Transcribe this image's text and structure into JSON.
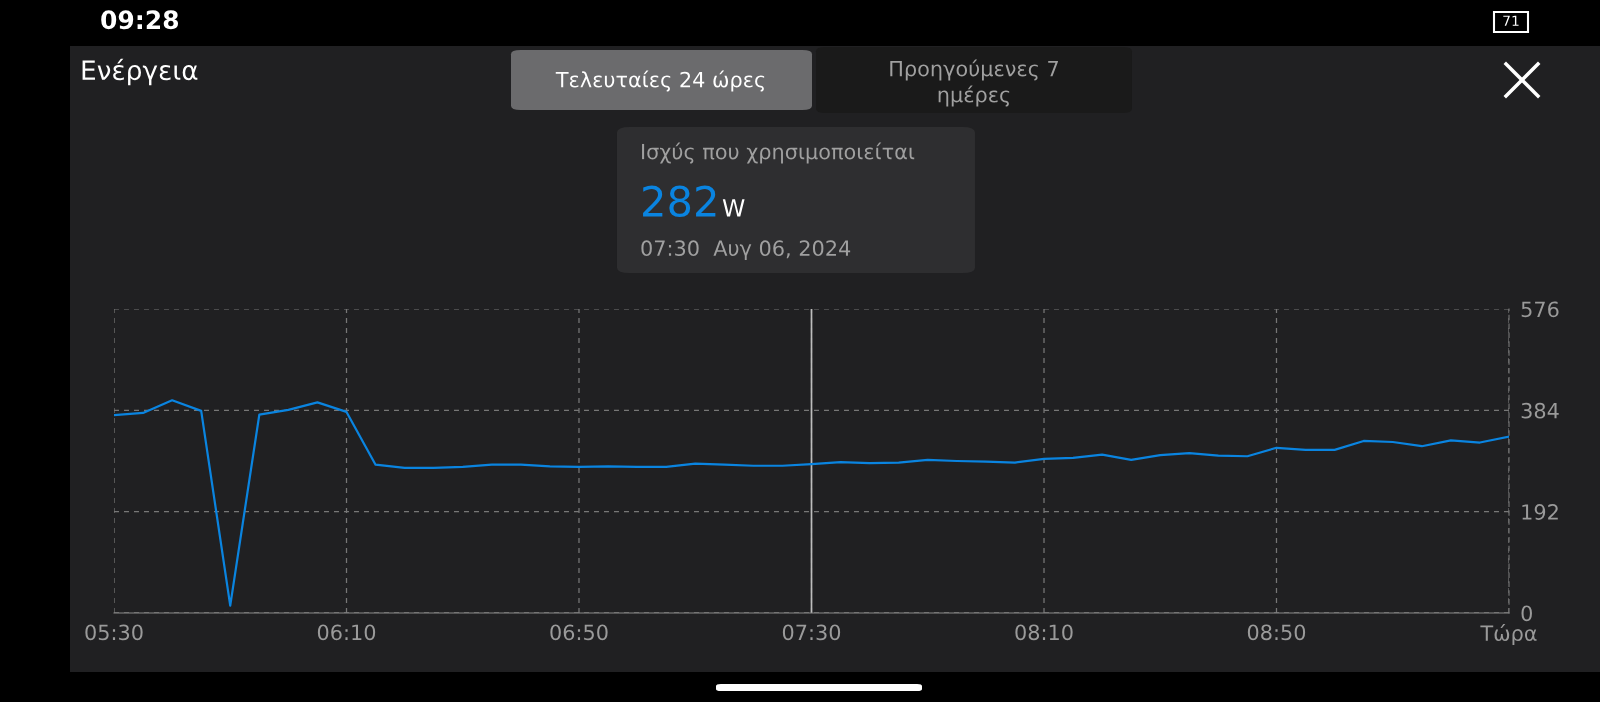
{
  "chart_data": {
    "type": "line",
    "title": "Ενέργεια",
    "x": [
      5.5,
      5.5833,
      5.6667,
      5.75,
      5.8333,
      5.9167,
      6.0,
      6.0833,
      6.1667,
      6.25,
      6.3333,
      6.4167,
      6.5,
      6.5833,
      6.6667,
      6.75,
      6.8333,
      6.9167,
      7.0,
      7.0833,
      7.1667,
      7.25,
      7.3333,
      7.4167,
      7.5,
      7.5833,
      7.6667,
      7.75,
      7.8333,
      7.9167,
      8.0,
      8.0833,
      8.1667,
      8.25,
      8.3333,
      8.4167,
      8.5,
      8.5833,
      8.6667,
      8.75,
      8.8333,
      8.9167,
      9.0,
      9.0833,
      9.1667,
      9.25,
      9.3333,
      9.4167,
      9.5
    ],
    "series": [
      {
        "color": "#0a84e0",
        "values": [
          375,
          379,
          403,
          383,
          14,
          376,
          385,
          399,
          381,
          281,
          275,
          275,
          277,
          281,
          281,
          278,
          277,
          278,
          277,
          277,
          283,
          281,
          279,
          279,
          282,
          286,
          284,
          285,
          290,
          288,
          287,
          285,
          292,
          294,
          300,
          290,
          299,
          303,
          298,
          297,
          313,
          309,
          309,
          326,
          324,
          316,
          327,
          323,
          334
        ]
      }
    ],
    "xlim": [
      5.5,
      9.5
    ],
    "xticks": [
      {
        "value": 5.5,
        "label": "05:30"
      },
      {
        "value": 6.1667,
        "label": "06:10"
      },
      {
        "value": 6.8333,
        "label": "06:50"
      },
      {
        "value": 7.5,
        "label": "07:30"
      },
      {
        "value": 8.1667,
        "label": "08:10"
      },
      {
        "value": 8.8333,
        "label": "08:50"
      },
      {
        "value": 9.5,
        "label": "Τώρα"
      }
    ],
    "ylim": [
      0,
      576
    ],
    "yticks": [
      0,
      192,
      384,
      576
    ],
    "grid": true,
    "line_style": "solid",
    "marker": "none",
    "ref_lines": [
      {
        "axis": "x",
        "value": 7.5,
        "color": "#bdbdbd",
        "line_style": "solid"
      }
    ],
    "annotations": [
      "Ισχύς που χρησιμοποιείται",
      "282",
      "W",
      "07:30  Αυγ 06, 2024",
      "Τελευταίες 24 ώρες",
      "Προηγούμενες 7 ημέρες",
      "09:28",
      "71"
    ]
  }
}
